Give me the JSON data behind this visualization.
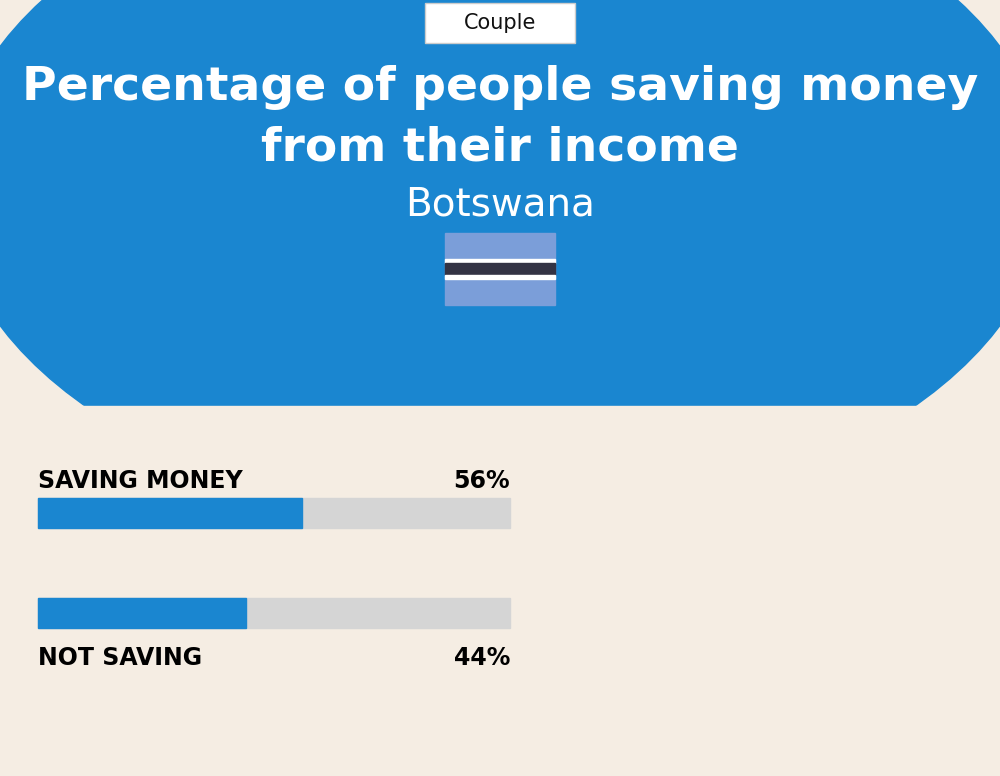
{
  "title_line1": "Percentage of people saving money",
  "title_line2": "from their income",
  "subtitle": "Botswana",
  "tab_label": "Couple",
  "bg_top_color": "#1A86D0",
  "bg_bottom_color": "#F5EDE3",
  "title_color": "#FFFFFF",
  "subtitle_color": "#FFFFFF",
  "bar1_label": "SAVING MONEY",
  "bar1_value": 56,
  "bar1_pct": "56%",
  "bar2_label": "NOT SAVING",
  "bar2_value": 44,
  "bar2_pct": "44%",
  "bar_filled_color": "#1A86D0",
  "bar_empty_color": "#D5D5D5",
  "label_color": "#000000",
  "tab_color": "#FFFFFF",
  "tab_text_color": "#111111",
  "flag_blue": "#7B9ED9",
  "flag_black": "#333344",
  "flag_white": "#FFFFFF"
}
